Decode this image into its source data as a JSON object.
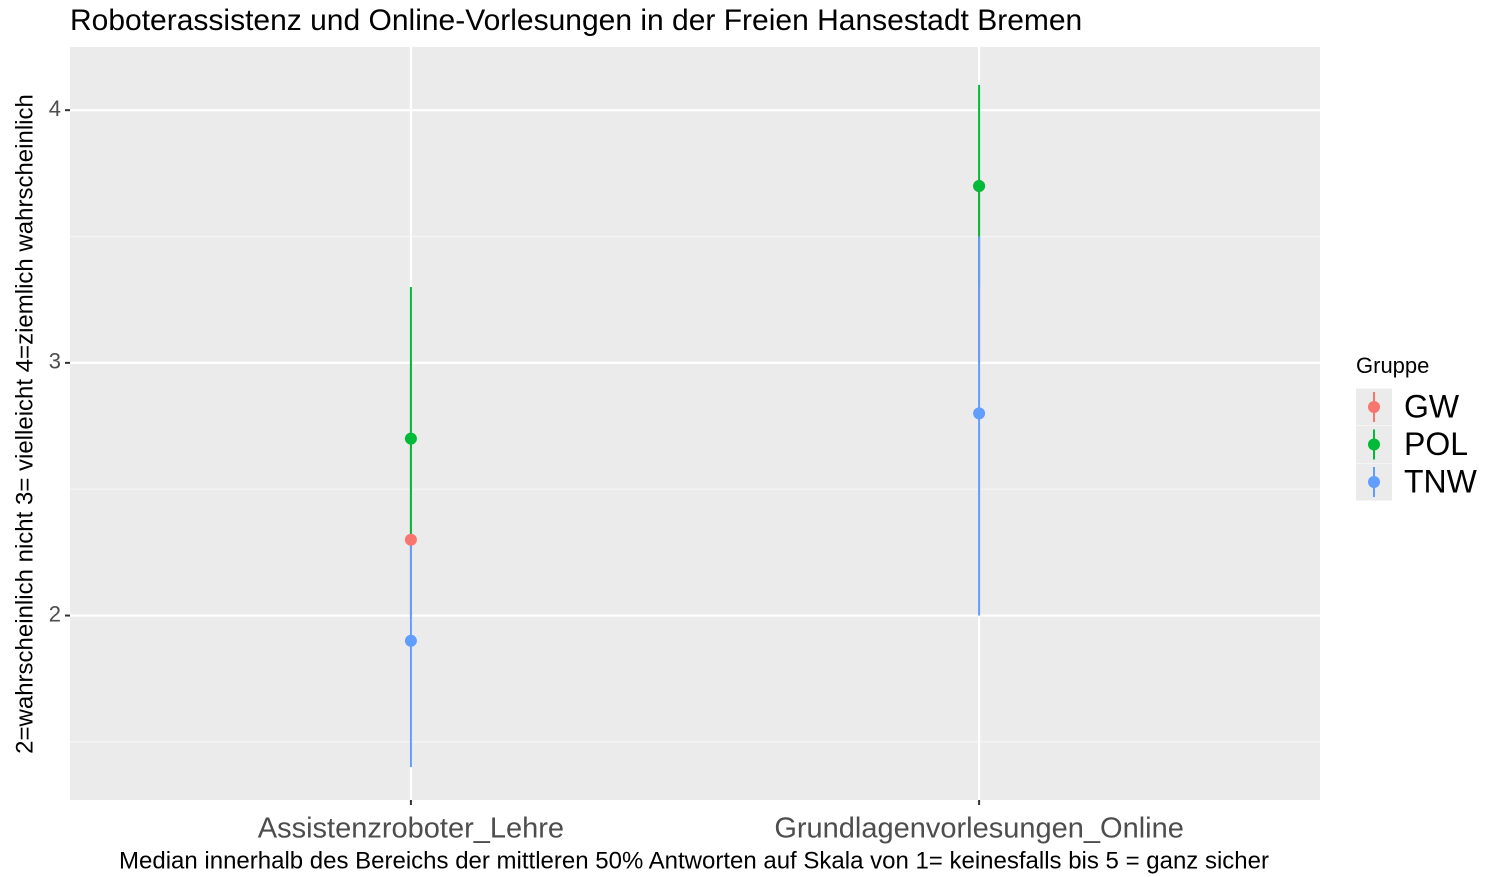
{
  "chart_data": {
    "type": "pointrange",
    "title": "Roboterassistenz und Online-Vorlesungen in der Freien Hansestadt Bremen",
    "x_label": "Median innerhalb des Bereichs der mittleren 50% Antworten auf Skala von 1= keinesfalls bis 5 = ganz sicher",
    "y_label": "2=wahrscheinlich nicht   3= vielleicht  4=ziemlich wahrscheinlich",
    "legend_title": "Gruppe",
    "categories": [
      "Assistenzroboter_Lehre",
      "Grundlagenvorlesungen_Online"
    ],
    "series": [
      {
        "name": "GW",
        "color": "#F8766D",
        "values": [
          2.3,
          3.7
        ],
        "low": [
          2.0,
          3.0
        ],
        "high": [
          3.0,
          3.7
        ]
      },
      {
        "name": "POL",
        "color": "#00BA38",
        "values": [
          2.7,
          3.7
        ],
        "low": [
          2.3,
          3.3
        ],
        "high": [
          3.3,
          4.1
        ]
      },
      {
        "name": "TNW",
        "color": "#619CFF",
        "values": [
          1.9,
          2.8
        ],
        "low": [
          1.4,
          2.0
        ],
        "high": [
          2.3,
          3.5
        ]
      }
    ],
    "ylim": [
      1.27,
      4.25
    ],
    "yticks": [
      2,
      3,
      4
    ],
    "yminor": [
      1.5,
      2.5,
      3.5
    ],
    "grid": true,
    "legend": "right"
  }
}
